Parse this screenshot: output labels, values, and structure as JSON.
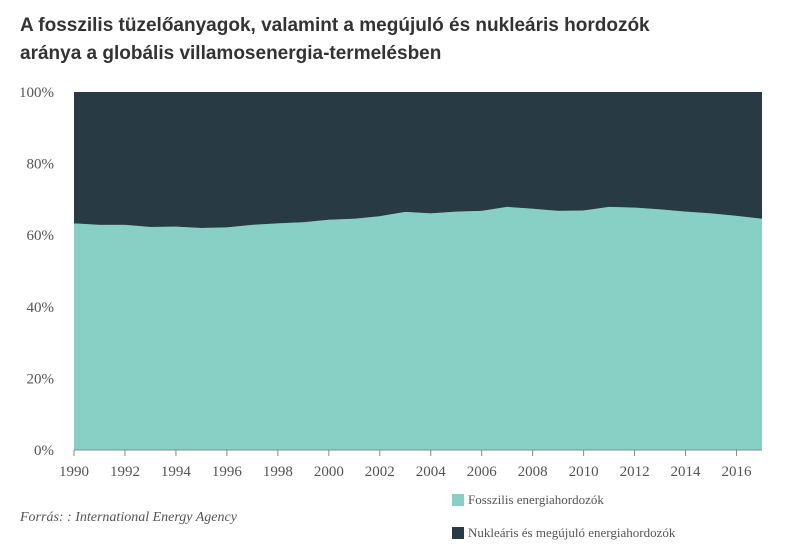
{
  "header": {
    "title_line1": "A fosszilis tüzelőanyagok, valamint a megújuló és nukleáris hordozók",
    "title_line2": "aránya a globális villamosenergia-termelésben"
  },
  "source": "Forrás: : International Energy Agency",
  "colors": {
    "fossil": "#88cfc6",
    "nuclear_renewable": "#283b45",
    "axis_text": "#555555",
    "title_text": "#333333"
  },
  "legend": {
    "fossil_label": "Fosszilis energiahordozók",
    "nuclear_label": "Nukleáris és megújuló energiahordozók"
  },
  "chart_data": {
    "type": "area",
    "stacked": true,
    "x": [
      1990,
      1991,
      1992,
      1993,
      1994,
      1995,
      1996,
      1997,
      1998,
      1999,
      2000,
      2001,
      2002,
      2003,
      2004,
      2005,
      2006,
      2007,
      2008,
      2009,
      2010,
      2011,
      2012,
      2013,
      2014,
      2015,
      2016,
      2017
    ],
    "series": [
      {
        "name": "Fosszilis energiahordozók",
        "values": [
          63.3,
          62.9,
          62.9,
          62.3,
          62.4,
          62.0,
          62.2,
          62.9,
          63.3,
          63.6,
          64.3,
          64.6,
          65.3,
          66.5,
          66.1,
          66.6,
          66.8,
          67.9,
          67.4,
          66.8,
          66.9,
          67.9,
          67.7,
          67.2,
          66.6,
          66.1,
          65.4,
          64.6
        ]
      },
      {
        "name": "Nukleáris és megújuló energiahordozók",
        "values": [
          36.7,
          37.1,
          37.1,
          37.7,
          37.6,
          38.0,
          37.8,
          37.1,
          36.7,
          36.4,
          35.7,
          35.4,
          34.7,
          33.5,
          33.9,
          33.4,
          33.2,
          32.1,
          32.6,
          33.2,
          33.1,
          32.1,
          32.3,
          32.8,
          33.4,
          33.9,
          34.6,
          35.4
        ]
      }
    ],
    "x_ticks": [
      "1990",
      "1992",
      "1994",
      "1996",
      "1998",
      "2000",
      "2002",
      "2004",
      "2006",
      "2008",
      "2010",
      "2012",
      "2014",
      "2016"
    ],
    "y_ticks": [
      "0%",
      "20%",
      "40%",
      "60%",
      "80%",
      "100%"
    ],
    "xlim": [
      1990,
      2017
    ],
    "ylim": [
      0,
      100
    ],
    "xlabel": "",
    "ylabel": "",
    "grid": false,
    "legend_position": "bottom-right"
  }
}
